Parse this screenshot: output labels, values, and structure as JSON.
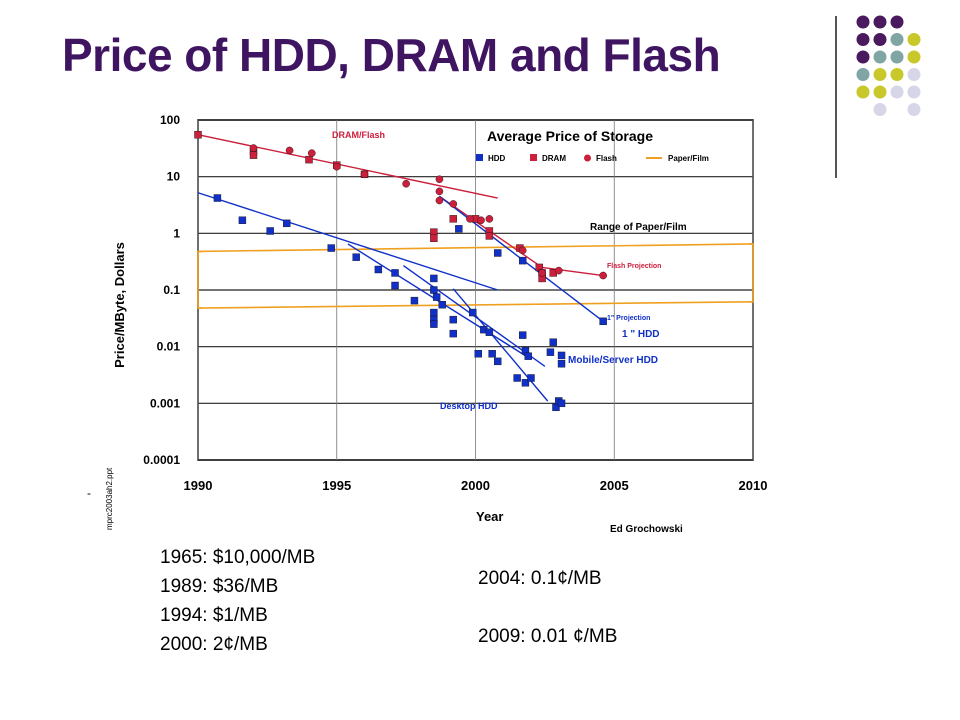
{
  "slide": {
    "title": "Price of HDD, DRAM and Flash",
    "accent_color": "#3f1561",
    "decor_dot_colors": [
      "#4b1a5e",
      "#7fa5a4",
      "#c8c82a",
      "#d6d6e8"
    ]
  },
  "chart_data": {
    "type": "scatter",
    "title": "Average Price of Storage",
    "xlabel": "Year",
    "ylabel": "Price/MByte, Dollars",
    "xlim": [
      1990,
      2010
    ],
    "ylim": [
      0.0001,
      100
    ],
    "yscale": "log",
    "x_ticks": [
      "1990",
      "1995",
      "2000",
      "2005",
      "2010"
    ],
    "y_ticks": [
      "100",
      "10",
      "1",
      "0.1",
      "0.01",
      "0.001",
      "0.0001"
    ],
    "grid": true,
    "legend_position": "top-right",
    "credit": "Ed Grochowski",
    "side_label": "mprc2003ah2.ppt",
    "legend": [
      {
        "label": "HDD",
        "color": "#1030c8",
        "marker": "square"
      },
      {
        "label": "DRAM",
        "color": "#cc1f3c",
        "marker": "square"
      },
      {
        "label": "Flash",
        "color": "#cc1f3c",
        "marker": "circle"
      },
      {
        "label": "Paper/Film",
        "color": "#f0a020",
        "marker": "line"
      }
    ],
    "annotations": {
      "dram_flash": "DRAM/Flash",
      "paper_range": "Range of Paper/Film",
      "flash_projection": "Flash Projection",
      "one_inch_projection": "1\" Projection",
      "one_inch_hdd": "1 \" HDD",
      "mobile_server_hdd": "Mobile/Server HDD",
      "desktop_hdd": "Desktop HDD"
    },
    "series": [
      {
        "name": "HDD",
        "color": "#1030c8",
        "marker": "square",
        "points": [
          [
            1990.7,
            4.2
          ],
          [
            1991.6,
            1.7
          ],
          [
            1992.6,
            1.1
          ],
          [
            1993.2,
            1.5
          ],
          [
            1994.8,
            0.55
          ],
          [
            1995.7,
            0.38
          ],
          [
            1996.5,
            0.23
          ],
          [
            1997.1,
            0.2
          ],
          [
            1997.1,
            0.12
          ],
          [
            1997.8,
            0.065
          ],
          [
            1998.5,
            0.16
          ],
          [
            1998.5,
            0.1
          ],
          [
            1998.6,
            0.075
          ],
          [
            1998.5,
            0.04
          ],
          [
            1998.5,
            0.03
          ],
          [
            1998.5,
            0.025
          ],
          [
            1998.8,
            0.055
          ],
          [
            1999.2,
            0.03
          ],
          [
            1999.2,
            0.017
          ],
          [
            1999.4,
            1.2
          ],
          [
            1999.9,
            0.04
          ],
          [
            2000.1,
            0.0075
          ],
          [
            2000.3,
            0.02
          ],
          [
            2000.5,
            0.018
          ],
          [
            2000.6,
            0.0075
          ],
          [
            2000.8,
            0.0055
          ],
          [
            2000.8,
            0.45
          ],
          [
            2001.5,
            0.0028
          ],
          [
            2001.7,
            0.016
          ],
          [
            2001.7,
            0.33
          ],
          [
            2001.8,
            0.0085
          ],
          [
            2001.8,
            0.0023
          ],
          [
            2001.9,
            0.0068
          ],
          [
            2002.0,
            0.0028
          ],
          [
            2002.7,
            0.008
          ],
          [
            2002.8,
            0.012
          ],
          [
            2002.9,
            0.00085
          ],
          [
            2003.0,
            0.0011
          ],
          [
            2003.1,
            0.001
          ],
          [
            2003.1,
            0.007
          ],
          [
            2003.1,
            0.005
          ],
          [
            2004.6,
            0.028
          ]
        ]
      },
      {
        "name": "DRAM",
        "color": "#cc1f3c",
        "marker": "square",
        "points": [
          [
            1990.0,
            55
          ],
          [
            1992.0,
            28
          ],
          [
            1992.0,
            24
          ],
          [
            1994.0,
            20
          ],
          [
            1995.0,
            16
          ],
          [
            1996.0,
            11
          ],
          [
            1998.5,
            1.05
          ],
          [
            1998.5,
            0.82
          ],
          [
            1999.2,
            1.8
          ],
          [
            2000.0,
            1.8
          ],
          [
            2000.5,
            1.1
          ],
          [
            2000.5,
            0.9
          ],
          [
            2001.6,
            0.55
          ],
          [
            2002.3,
            0.25
          ],
          [
            2002.4,
            0.2
          ],
          [
            2002.4,
            0.16
          ],
          [
            2002.8,
            0.2
          ]
        ]
      },
      {
        "name": "Flash",
        "color": "#cc1f3c",
        "marker": "circle",
        "points": [
          [
            1992.0,
            32
          ],
          [
            1993.3,
            29
          ],
          [
            1994.1,
            26
          ],
          [
            1995.0,
            15
          ],
          [
            1996.0,
            11
          ],
          [
            1997.5,
            7.5
          ],
          [
            1998.7,
            9
          ],
          [
            1998.7,
            5.5
          ],
          [
            1998.7,
            3.8
          ],
          [
            1999.2,
            3.3
          ],
          [
            1999.8,
            1.8
          ],
          [
            2000.2,
            1.7
          ],
          [
            2000.5,
            1.8
          ],
          [
            2001.7,
            0.5
          ],
          [
            2002.4,
            0.2
          ],
          [
            2003.0,
            0.22
          ],
          [
            2004.6,
            0.18
          ]
        ]
      },
      {
        "name": "Paper/Film",
        "color": "#f0a020",
        "marker": "line",
        "lines": [
          [
            [
              1990,
              0.48
            ],
            [
              2010,
              0.65
            ]
          ],
          [
            [
              1990,
              0.048
            ],
            [
              2010,
              0.062
            ]
          ]
        ]
      }
    ],
    "trend_lines": [
      {
        "name": "DRAM/Flash",
        "color": "#cc1f3c",
        "points": [
          [
            1990,
            55
          ],
          [
            2000.8,
            4.2
          ]
        ]
      },
      {
        "name": "DRAM/Flash",
        "color": "#cc1f3c",
        "points": [
          [
            1998.7,
            4.5
          ],
          [
            2002.4,
            0.25
          ]
        ]
      },
      {
        "name": "Flash Projection",
        "color": "#cc1f3c",
        "points": [
          [
            2002.4,
            0.25
          ],
          [
            2004.6,
            0.18
          ]
        ]
      },
      {
        "name": "HDD",
        "color": "#1030c8",
        "points": [
          [
            1990,
            5.2
          ],
          [
            2000.8,
            0.1
          ]
        ]
      },
      {
        "name": "1\" HDD",
        "color": "#1030c8",
        "points": [
          [
            1998.7,
            4.5
          ],
          [
            2004.6,
            0.028
          ]
        ]
      },
      {
        "name": "Mobile/Server HDD",
        "color": "#1030c8",
        "points": [
          [
            1995.4,
            0.65
          ],
          [
            2002.0,
            0.006
          ]
        ]
      },
      {
        "name": "Mobile/Server HDD",
        "color": "#1030c8",
        "points": [
          [
            1997.4,
            0.27
          ],
          [
            2002.5,
            0.0045
          ]
        ]
      },
      {
        "name": "Desktop HDD",
        "color": "#1030c8",
        "points": [
          [
            1999.2,
            0.105
          ],
          [
            2002.6,
            0.0011
          ]
        ]
      }
    ]
  },
  "notes": {
    "left": [
      "1965: $10,000/MB",
      "1989: $36/MB",
      "1994: $1/MB",
      "2000: 2¢/MB"
    ],
    "right": [
      "2004: 0.1¢/MB",
      "2009: 0.01 ¢/MB"
    ]
  }
}
